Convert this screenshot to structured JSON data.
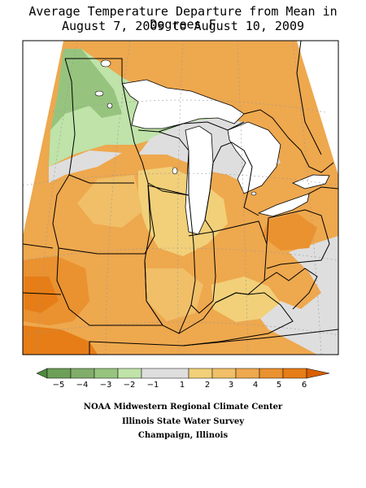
{
  "title": {
    "line1": "Average Temperature Departure from Mean in Degrees F",
    "line2": "August 7, 2009 to August 10, 2009"
  },
  "colors": {
    "water": "#ffffff",
    "graticule": "#999999",
    "border": "#000000",
    "minus3": "#96c47e",
    "minus2": "#bfe3a9",
    "near0": "#dedede",
    "plus1": "#f1d079",
    "plus2": "#f0bf68",
    "plus3": "#eea84e",
    "plus4": "#ea9130",
    "plus5": "#e67d17",
    "plus6": "#d85f00",
    "minus6": "#4d8a3f",
    "minus5": "#6e9f58",
    "minus4": "#80ad6a"
  },
  "legend": {
    "labels": [
      "−5",
      "−4",
      "−3",
      "−2",
      "−1",
      "1",
      "2",
      "3",
      "4",
      "5",
      "6"
    ]
  },
  "credits": {
    "line1": "NOAA Midwestern Regional Climate Center",
    "line2": "Illinois State Water Survey",
    "line3": "Champaign, Illinois"
  }
}
